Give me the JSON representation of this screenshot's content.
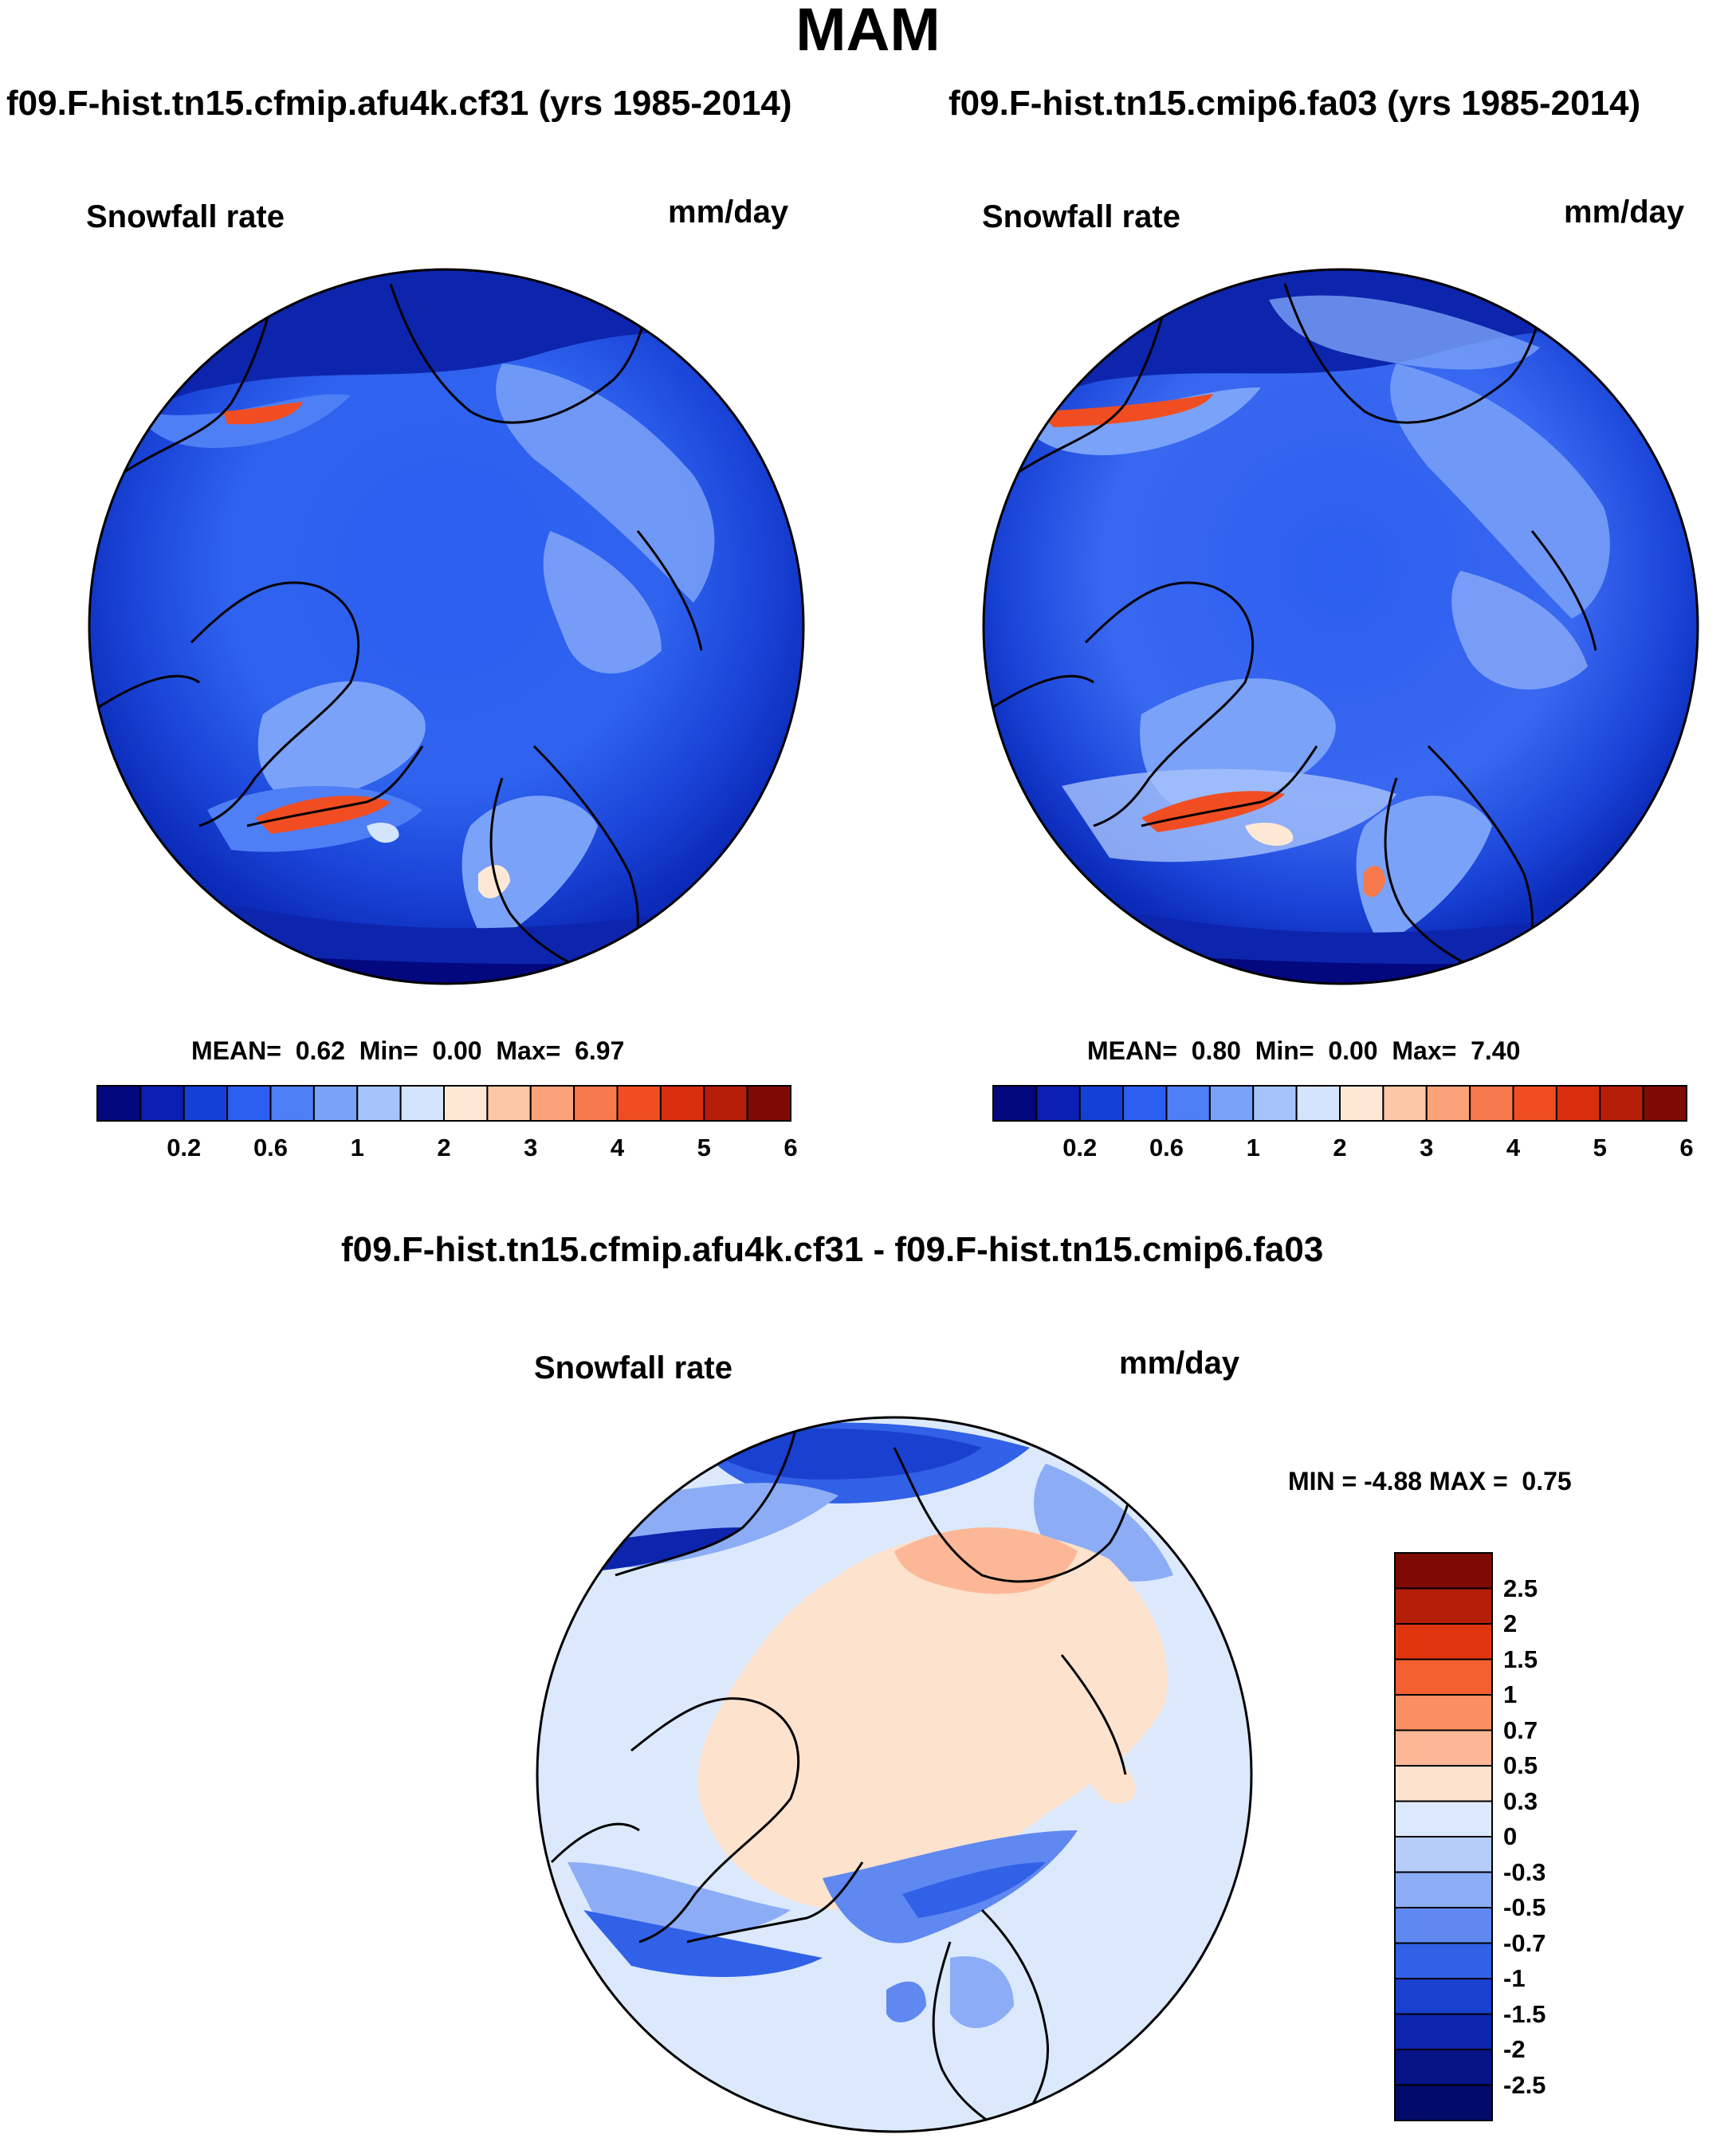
{
  "figure": {
    "season": "MAM"
  },
  "panels": [
    {
      "case": "f09.F-hist.tn15.cfmip.afu4k.cf31 (yrs 1985-2014)",
      "variable": "Snowfall rate",
      "units": "mm/day",
      "stats": {
        "mean_label": "MEAN=",
        "mean": "0.62",
        "min_label": "Min=",
        "min": "0.00",
        "max_label": "Max=",
        "max": "6.97"
      }
    },
    {
      "case": "f09.F-hist.tn15.cmip6.fa03 (yrs 1985-2014)",
      "variable": "Snowfall rate",
      "units": "mm/day",
      "stats": {
        "mean_label": "MEAN=",
        "mean": "0.80",
        "min_label": "Min=",
        "min": "0.00",
        "max_label": "Max=",
        "max": "7.40"
      }
    }
  ],
  "diff": {
    "title": "f09.F-hist.tn15.cfmip.afu4k.cf31 - f09.F-hist.tn15.cmip6.fa03",
    "variable": "Snowfall rate",
    "units": "mm/day",
    "stats": {
      "min_label": "MIN =",
      "min": "-4.88",
      "max_label": "MAX =",
      "max": "0.75"
    }
  },
  "chart_data": [
    {
      "type": "heatmap",
      "projection": "north polar stereographic",
      "title": "f09.F-hist.tn15.cfmip.afu4k.cf31 (yrs 1985-2014)",
      "variable": "Snowfall rate",
      "units": "mm/day",
      "mean": 0.62,
      "min": 0.0,
      "max": 6.97,
      "colorbar": {
        "levels": [
          0.1,
          0.2,
          0.4,
          0.6,
          0.8,
          1,
          1.5,
          2,
          2.5,
          3,
          3.5,
          4,
          4.5,
          5,
          5.5,
          6
        ],
        "tick_labels": [
          "0.2",
          "0.6",
          "1",
          "2",
          "3",
          "4",
          "5",
          "6"
        ],
        "colors": [
          "#04087e",
          "#0a1fb3",
          "#1540d6",
          "#2c5ef0",
          "#4f7ff5",
          "#7aa2f8",
          "#a7c3fb",
          "#d3e4fd",
          "#fde8d6",
          "#fcc7a6",
          "#fca27a",
          "#f77a4d",
          "#f04e22",
          "#d92f0e",
          "#b41e09",
          "#7d0b04"
        ]
      }
    },
    {
      "type": "heatmap",
      "projection": "north polar stereographic",
      "title": "f09.F-hist.tn15.cmip6.fa03 (yrs 1985-2014)",
      "variable": "Snowfall rate",
      "units": "mm/day",
      "mean": 0.8,
      "min": 0.0,
      "max": 7.4,
      "colorbar": {
        "levels": [
          0.1,
          0.2,
          0.4,
          0.6,
          0.8,
          1,
          1.5,
          2,
          2.5,
          3,
          3.5,
          4,
          4.5,
          5,
          5.5,
          6
        ],
        "tick_labels": [
          "0.2",
          "0.6",
          "1",
          "2",
          "3",
          "4",
          "5",
          "6"
        ],
        "colors": [
          "#04087e",
          "#0a1fb3",
          "#1540d6",
          "#2c5ef0",
          "#4f7ff5",
          "#7aa2f8",
          "#a7c3fb",
          "#d3e4fd",
          "#fde8d6",
          "#fcc7a6",
          "#fca27a",
          "#f77a4d",
          "#f04e22",
          "#d92f0e",
          "#b41e09",
          "#7d0b04"
        ]
      }
    },
    {
      "type": "heatmap",
      "projection": "north polar stereographic",
      "title": "f09.F-hist.tn15.cfmip.afu4k.cf31 - f09.F-hist.tn15.cmip6.fa03",
      "variable": "Snowfall rate",
      "units": "mm/day",
      "min": -4.88,
      "max": 0.75,
      "colorbar": {
        "tick_labels": [
          "2.5",
          "2",
          "1.5",
          "1",
          "0.7",
          "0.5",
          "0.3",
          "0",
          "-0.3",
          "-0.5",
          "-0.7",
          "-1",
          "-1.5",
          "-2",
          "-2.5"
        ],
        "colors": [
          "#7d0b04",
          "#b41e09",
          "#e0360f",
          "#f4602f",
          "#f98f62",
          "#fcb896",
          "#fde2cd",
          "#dce9fc",
          "#b6cdf9",
          "#8cadf6",
          "#5f88f1",
          "#3161e6",
          "#1a40d0",
          "#0d25ad",
          "#061486",
          "#030b6a"
        ]
      }
    }
  ]
}
